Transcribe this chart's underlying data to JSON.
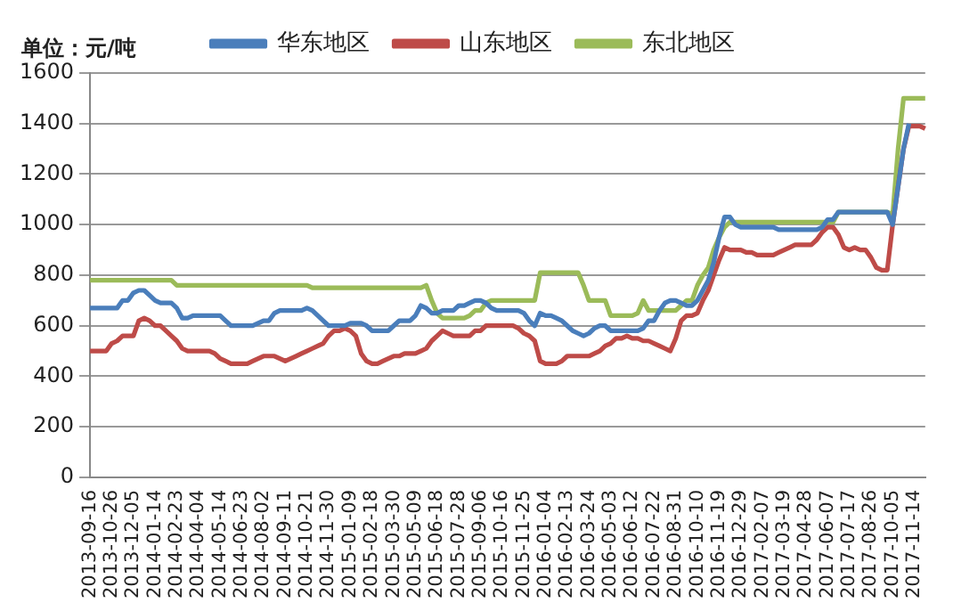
{
  "chart_data": {
    "type": "line",
    "ylabel": "单位：元/吨",
    "categories": [
      "2013-09-16",
      null,
      null,
      null,
      "2013-10-26",
      null,
      null,
      null,
      "2013-12-05",
      null,
      null,
      null,
      "2014-01-14",
      null,
      null,
      null,
      "2014-02-23",
      null,
      null,
      null,
      "2014-04-04",
      null,
      null,
      null,
      "2014-05-14",
      null,
      null,
      null,
      "2014-06-23",
      null,
      null,
      null,
      "2014-08-02",
      null,
      null,
      null,
      "2014-09-11",
      null,
      null,
      null,
      "2014-10-21",
      null,
      null,
      null,
      "2014-11-30",
      null,
      null,
      null,
      "2015-01-09",
      null,
      null,
      null,
      "2015-02-18",
      null,
      null,
      null,
      "2015-03-30",
      null,
      null,
      null,
      "2015-05-09",
      null,
      null,
      null,
      "2015-06-18",
      null,
      null,
      null,
      "2015-07-28",
      null,
      null,
      null,
      "2015-09-06",
      null,
      null,
      null,
      "2015-10-16",
      null,
      null,
      null,
      "2015-11-25",
      null,
      null,
      null,
      "2016-01-04",
      null,
      null,
      null,
      "2016-02-13",
      null,
      null,
      null,
      "2016-03-24",
      null,
      null,
      null,
      "2016-05-03",
      null,
      null,
      null,
      "2016-06-12",
      null,
      null,
      null,
      "2016-07-22",
      null,
      null,
      null,
      "2016-08-31",
      null,
      null,
      null,
      "2016-10-10",
      null,
      null,
      null,
      "2016-11-19",
      null,
      null,
      null,
      "2016-12-29",
      null,
      null,
      null,
      "2017-02-07",
      null,
      null,
      null,
      "2017-03-19",
      null,
      null,
      null,
      "2017-04-28",
      null,
      null,
      null,
      "2017-06-07",
      null,
      null,
      null,
      "2017-07-17",
      null,
      null,
      null,
      "2017-08-26",
      null,
      null,
      null,
      "2017-10-05",
      null,
      null,
      null,
      "2017-11-14",
      null,
      null
    ],
    "series": [
      {
        "name": "华东地区",
        "color": "#4a7ebb",
        "values": [
          670,
          670,
          670,
          670,
          670,
          670,
          700,
          700,
          730,
          740,
          740,
          720,
          700,
          690,
          690,
          690,
          670,
          630,
          630,
          640,
          640,
          640,
          640,
          640,
          640,
          620,
          600,
          600,
          600,
          600,
          600,
          610,
          620,
          620,
          650,
          660,
          660,
          660,
          660,
          660,
          670,
          660,
          640,
          620,
          600,
          600,
          600,
          600,
          610,
          610,
          610,
          600,
          580,
          580,
          580,
          580,
          600,
          620,
          620,
          620,
          640,
          680,
          670,
          650,
          650,
          660,
          660,
          660,
          680,
          680,
          690,
          700,
          700,
          690,
          670,
          660,
          660,
          660,
          660,
          660,
          650,
          620,
          600,
          650,
          640,
          640,
          630,
          620,
          600,
          580,
          570,
          560,
          570,
          590,
          600,
          600,
          580,
          580,
          580,
          580,
          580,
          580,
          590,
          620,
          620,
          660,
          690,
          700,
          700,
          690,
          680,
          680,
          700,
          740,
          780,
          850,
          950,
          1030,
          1030,
          1000,
          990,
          990,
          990,
          990,
          990,
          990,
          990,
          980,
          980,
          980,
          980,
          980,
          980,
          980,
          980,
          990,
          1020,
          1020,
          1050,
          1050,
          1050,
          1050,
          1050,
          1050,
          1050,
          1050,
          1050,
          1050,
          1000,
          1150,
          1300,
          1400,
          null,
          null,
          null
        ]
      },
      {
        "name": "山东地区",
        "color": "#be4b48",
        "values": [
          500,
          500,
          500,
          500,
          530,
          540,
          560,
          560,
          560,
          620,
          630,
          620,
          600,
          600,
          580,
          560,
          540,
          510,
          500,
          500,
          500,
          500,
          500,
          490,
          470,
          460,
          450,
          450,
          450,
          450,
          460,
          470,
          480,
          480,
          480,
          470,
          460,
          470,
          480,
          490,
          500,
          510,
          520,
          530,
          560,
          580,
          580,
          590,
          580,
          560,
          490,
          460,
          450,
          450,
          460,
          470,
          480,
          480,
          490,
          490,
          490,
          500,
          510,
          540,
          560,
          580,
          570,
          560,
          560,
          560,
          560,
          580,
          580,
          600,
          600,
          600,
          600,
          600,
          600,
          590,
          570,
          560,
          540,
          460,
          450,
          450,
          450,
          460,
          480,
          480,
          480,
          480,
          480,
          490,
          500,
          520,
          530,
          550,
          550,
          560,
          550,
          550,
          540,
          540,
          530,
          520,
          510,
          500,
          550,
          620,
          640,
          640,
          650,
          700,
          740,
          800,
          860,
          910,
          900,
          900,
          900,
          890,
          890,
          880,
          880,
          880,
          880,
          890,
          900,
          910,
          920,
          920,
          920,
          920,
          940,
          970,
          990,
          990,
          960,
          910,
          900,
          910,
          900,
          900,
          870,
          830,
          820,
          820,
          1000,
          1150,
          1300,
          1390,
          1390,
          1390,
          1380
        ]
      },
      {
        "name": "东北地区",
        "color": "#9bbb59",
        "values": [
          780,
          780,
          780,
          780,
          780,
          780,
          780,
          780,
          780,
          780,
          780,
          780,
          780,
          780,
          780,
          780,
          760,
          760,
          760,
          760,
          760,
          760,
          760,
          760,
          760,
          760,
          760,
          760,
          760,
          760,
          760,
          760,
          760,
          760,
          760,
          760,
          760,
          760,
          760,
          760,
          760,
          750,
          750,
          750,
          750,
          750,
          750,
          750,
          750,
          750,
          750,
          750,
          750,
          750,
          750,
          750,
          750,
          750,
          750,
          750,
          750,
          750,
          760,
          700,
          650,
          630,
          630,
          630,
          630,
          630,
          640,
          660,
          660,
          690,
          700,
          700,
          700,
          700,
          700,
          700,
          700,
          700,
          700,
          810,
          810,
          810,
          810,
          810,
          810,
          810,
          810,
          760,
          700,
          700,
          700,
          700,
          640,
          640,
          640,
          640,
          640,
          650,
          700,
          660,
          660,
          660,
          660,
          660,
          660,
          680,
          700,
          700,
          760,
          800,
          830,
          900,
          950,
          990,
          1010,
          1010,
          1010,
          1010,
          1010,
          1010,
          1010,
          1010,
          1010,
          1010,
          1010,
          1010,
          1010,
          1010,
          1010,
          1010,
          1010,
          1010,
          1010,
          1010,
          1050,
          1050,
          1050,
          1050,
          1050,
          1050,
          1050,
          1050,
          1050,
          1050,
          1040,
          1300,
          1500,
          1500,
          1500,
          1500,
          1500
        ]
      }
    ],
    "ylim": [
      0,
      1600
    ],
    "yticks": [
      0,
      200,
      400,
      600,
      800,
      1000,
      1200,
      1400,
      1600
    ],
    "grid": "y",
    "legend": "top",
    "marker": "none",
    "line_style": "solid"
  }
}
